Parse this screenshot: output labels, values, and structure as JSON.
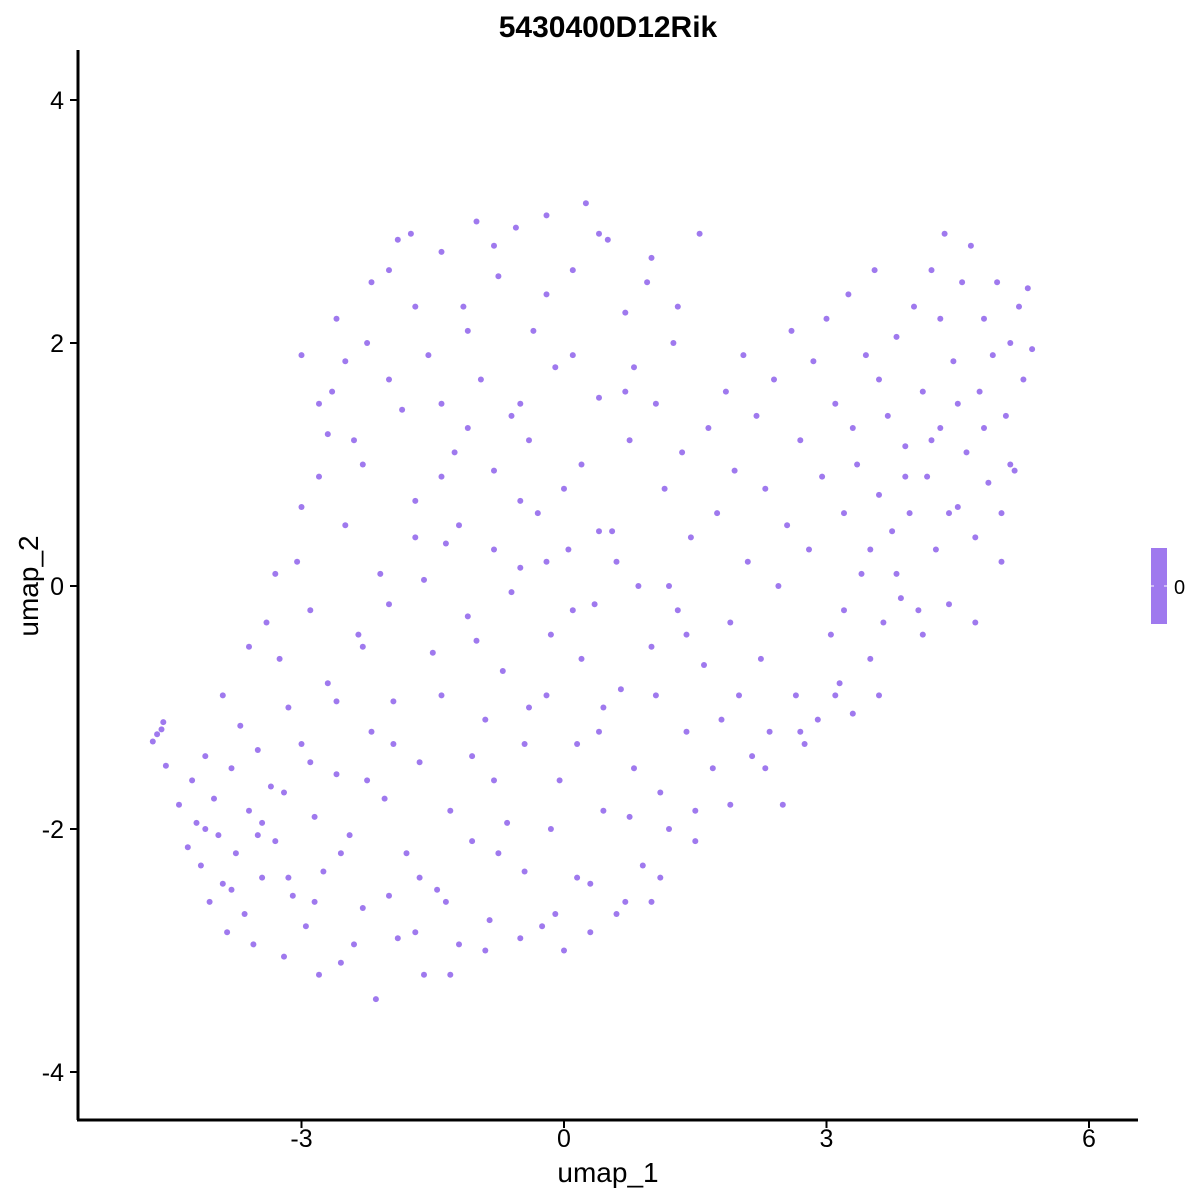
{
  "chart_data": {
    "type": "scatter",
    "title": "5430400D12Rik",
    "xlabel": "umap_1",
    "ylabel": "umap_2",
    "xlim": [
      -5.6,
      6.5
    ],
    "ylim": [
      -4.35,
      4.4
    ],
    "x_ticks": [
      -3,
      0,
      3,
      6
    ],
    "y_ticks": [
      -4,
      -2,
      0,
      2,
      4
    ],
    "x_tick_labels": [
      "-3",
      "0",
      "3",
      "6"
    ],
    "y_tick_labels": [
      "-4",
      "-2",
      "0",
      "2",
      "4"
    ],
    "grid": false,
    "point_color": "#9F79EE",
    "legend": {
      "position": "right",
      "type": "colorbar",
      "color": "#9F79EE",
      "labels": [
        "0"
      ]
    },
    "points": [
      [
        -4.7,
        -1.28
      ],
      [
        -4.65,
        -1.22
      ],
      [
        -4.6,
        -1.18
      ],
      [
        -4.58,
        -1.12
      ],
      [
        -4.55,
        -1.48
      ],
      [
        -4.4,
        -1.8
      ],
      [
        -4.3,
        -2.15
      ],
      [
        -4.25,
        -1.6
      ],
      [
        -4.2,
        -1.95
      ],
      [
        -4.15,
        -2.3
      ],
      [
        -4.1,
        -1.4
      ],
      [
        -4.05,
        -2.6
      ],
      [
        -4.0,
        -1.75
      ],
      [
        -3.95,
        -2.05
      ],
      [
        -3.9,
        -2.45
      ],
      [
        -3.85,
        -2.85
      ],
      [
        -3.8,
        -1.5
      ],
      [
        -3.75,
        -2.2
      ],
      [
        -3.7,
        -1.15
      ],
      [
        -3.65,
        -2.7
      ],
      [
        -3.6,
        -1.85
      ],
      [
        -3.55,
        -2.95
      ],
      [
        -3.5,
        -1.35
      ],
      [
        -3.45,
        -2.4
      ],
      [
        -3.4,
        -0.3
      ],
      [
        -3.35,
        -1.65
      ],
      [
        -3.3,
        -2.1
      ],
      [
        -3.25,
        -0.6
      ],
      [
        -3.2,
        -3.05
      ],
      [
        -3.15,
        -1.0
      ],
      [
        -3.1,
        -2.55
      ],
      [
        -3.05,
        0.2
      ],
      [
        -3.0,
        -1.3
      ],
      [
        -2.95,
        -2.8
      ],
      [
        -2.9,
        -0.2
      ],
      [
        -2.85,
        -1.9
      ],
      [
        -2.8,
        0.9
      ],
      [
        -2.75,
        -2.35
      ],
      [
        -2.7,
        -0.8
      ],
      [
        -2.65,
        1.6
      ],
      [
        -2.6,
        -1.55
      ],
      [
        -2.55,
        -3.1
      ],
      [
        -2.5,
        0.5
      ],
      [
        -2.45,
        -2.05
      ],
      [
        -2.4,
        1.2
      ],
      [
        -2.35,
        -0.4
      ],
      [
        -2.3,
        -2.65
      ],
      [
        -2.25,
        2.0
      ],
      [
        -2.2,
        -1.2
      ],
      [
        -2.15,
        -3.4
      ],
      [
        -2.1,
        0.1
      ],
      [
        -2.05,
        -1.75
      ],
      [
        -2.0,
        2.6
      ],
      [
        -1.95,
        -0.95
      ],
      [
        -1.9,
        -2.9
      ],
      [
        -1.85,
        1.45
      ],
      [
        -1.8,
        -2.2
      ],
      [
        -1.75,
        2.9
      ],
      [
        -1.7,
        0.7
      ],
      [
        -1.65,
        -1.45
      ],
      [
        -1.6,
        -3.2
      ],
      [
        -1.55,
        1.9
      ],
      [
        -1.5,
        -0.55
      ],
      [
        -1.45,
        -2.5
      ],
      [
        -1.4,
        2.75
      ],
      [
        -1.35,
        0.35
      ],
      [
        -1.3,
        -1.85
      ],
      [
        -1.25,
        1.1
      ],
      [
        -1.2,
        -2.95
      ],
      [
        -1.15,
        2.3
      ],
      [
        -1.1,
        -0.25
      ],
      [
        -1.05,
        -2.1
      ],
      [
        -1.0,
        3.0
      ],
      [
        -0.95,
        1.7
      ],
      [
        -0.9,
        -1.1
      ],
      [
        -0.85,
        -2.75
      ],
      [
        -0.8,
        0.95
      ],
      [
        -0.75,
        2.55
      ],
      [
        -0.7,
        -0.7
      ],
      [
        -0.65,
        -1.95
      ],
      [
        -0.6,
        1.4
      ],
      [
        -0.55,
        2.95
      ],
      [
        -0.5,
        0.15
      ],
      [
        -0.45,
        -2.35
      ],
      [
        -0.4,
        -1.0
      ],
      [
        -0.35,
        2.1
      ],
      [
        -0.3,
        0.6
      ],
      [
        -0.25,
        -2.8
      ],
      [
        -0.2,
        3.05
      ],
      [
        -0.15,
        -0.4
      ],
      [
        -0.1,
        1.8
      ],
      [
        -0.05,
        -1.6
      ],
      [
        0.0,
        -3.0
      ],
      [
        0.05,
        0.3
      ],
      [
        0.1,
        2.6
      ],
      [
        0.15,
        -1.3
      ],
      [
        0.2,
        1.0
      ],
      [
        0.25,
        3.15
      ],
      [
        0.3,
        -2.45
      ],
      [
        0.35,
        -0.15
      ],
      [
        0.4,
        1.55
      ],
      [
        0.45,
        -1.85
      ],
      [
        0.5,
        2.85
      ],
      [
        0.55,
        0.45
      ],
      [
        0.6,
        -2.7
      ],
      [
        0.65,
        -0.85
      ],
      [
        0.7,
        2.25
      ],
      [
        0.75,
        1.2
      ],
      [
        0.8,
        -1.5
      ],
      [
        0.85,
        0.0
      ],
      [
        0.9,
        -2.3
      ],
      [
        0.95,
        2.5
      ],
      [
        1.0,
        -0.5
      ],
      [
        1.05,
        1.5
      ],
      [
        1.1,
        -1.7
      ],
      [
        1.15,
        0.8
      ],
      [
        1.2,
        -2.0
      ],
      [
        1.25,
        2.0
      ],
      [
        1.3,
        -0.2
      ],
      [
        1.35,
        1.1
      ],
      [
        1.4,
        -1.2
      ],
      [
        1.45,
        0.4
      ],
      [
        1.5,
        -1.85
      ],
      [
        1.55,
        2.9
      ],
      [
        1.6,
        -0.65
      ],
      [
        1.65,
        1.3
      ],
      [
        1.7,
        -1.5
      ],
      [
        1.75,
        0.6
      ],
      [
        1.8,
        -1.1
      ],
      [
        1.85,
        1.6
      ],
      [
        1.9,
        -0.3
      ],
      [
        1.95,
        0.95
      ],
      [
        2.0,
        -0.9
      ],
      [
        2.05,
        1.9
      ],
      [
        2.1,
        0.2
      ],
      [
        2.15,
        -1.4
      ],
      [
        2.2,
        1.4
      ],
      [
        2.25,
        -0.6
      ],
      [
        2.3,
        0.8
      ],
      [
        2.35,
        -1.2
      ],
      [
        2.4,
        1.7
      ],
      [
        2.45,
        0.0
      ],
      [
        2.5,
        -1.8
      ],
      [
        2.55,
        0.5
      ],
      [
        2.6,
        2.1
      ],
      [
        2.65,
        -0.9
      ],
      [
        2.7,
        1.2
      ],
      [
        2.75,
        -1.3
      ],
      [
        2.8,
        0.3
      ],
      [
        2.85,
        1.85
      ],
      [
        2.9,
        -1.1
      ],
      [
        2.95,
        0.9
      ],
      [
        3.0,
        2.2
      ],
      [
        3.05,
        -0.4
      ],
      [
        3.1,
        1.5
      ],
      [
        3.15,
        -0.8
      ],
      [
        3.2,
        0.6
      ],
      [
        3.25,
        2.4
      ],
      [
        3.3,
        -1.05
      ],
      [
        3.35,
        1.0
      ],
      [
        3.4,
        0.1
      ],
      [
        3.45,
        1.9
      ],
      [
        3.5,
        -0.6
      ],
      [
        3.55,
        2.6
      ],
      [
        3.6,
        0.75
      ],
      [
        3.65,
        -0.3
      ],
      [
        3.7,
        1.4
      ],
      [
        3.75,
        0.45
      ],
      [
        3.8,
        2.05
      ],
      [
        3.85,
        -0.1
      ],
      [
        3.9,
        1.15
      ],
      [
        3.95,
        0.6
      ],
      [
        4.0,
        2.3
      ],
      [
        4.05,
        -0.2
      ],
      [
        4.1,
        1.6
      ],
      [
        4.15,
        0.9
      ],
      [
        4.2,
        2.6
      ],
      [
        4.25,
        0.3
      ],
      [
        4.3,
        1.3
      ],
      [
        4.35,
        2.9
      ],
      [
        4.4,
        -0.15
      ],
      [
        4.45,
        1.85
      ],
      [
        4.5,
        0.65
      ],
      [
        4.55,
        2.5
      ],
      [
        4.6,
        1.1
      ],
      [
        4.65,
        2.8
      ],
      [
        4.7,
        0.4
      ],
      [
        4.75,
        1.6
      ],
      [
        4.8,
        2.2
      ],
      [
        4.85,
        0.85
      ],
      [
        4.9,
        1.9
      ],
      [
        4.95,
        2.5
      ],
      [
        5.0,
        0.6
      ],
      [
        5.05,
        1.4
      ],
      [
        5.1,
        2.0
      ],
      [
        5.15,
        0.95
      ],
      [
        5.2,
        2.3
      ],
      [
        5.25,
        1.7
      ],
      [
        5.3,
        2.45
      ],
      [
        5.35,
        1.95
      ],
      [
        -3.9,
        -0.9
      ],
      [
        -3.6,
        -0.5
      ],
      [
        -3.3,
        0.1
      ],
      [
        -3.0,
        0.65
      ],
      [
        -2.7,
        1.25
      ],
      [
        -2.5,
        1.85
      ],
      [
        -2.2,
        2.5
      ],
      [
        -1.9,
        2.85
      ],
      [
        -1.6,
        0.05
      ],
      [
        -1.4,
        -0.9
      ],
      [
        -1.2,
        0.5
      ],
      [
        -1.0,
        -0.45
      ],
      [
        -0.8,
        -1.6
      ],
      [
        -0.6,
        -0.05
      ],
      [
        -0.4,
        1.2
      ],
      [
        -0.2,
        -0.9
      ],
      [
        0.0,
        0.8
      ],
      [
        0.2,
        -0.6
      ],
      [
        0.4,
        -1.2
      ],
      [
        0.6,
        0.2
      ],
      [
        0.8,
        1.8
      ],
      [
        1.0,
        -2.6
      ],
      [
        1.2,
        0.0
      ],
      [
        1.4,
        -0.4
      ],
      [
        -3.45,
        -1.95
      ],
      [
        -3.15,
        -2.4
      ],
      [
        -2.85,
        -2.6
      ],
      [
        -2.55,
        -2.2
      ],
      [
        -2.25,
        -1.6
      ],
      [
        -1.95,
        -1.3
      ],
      [
        -1.65,
        -2.4
      ],
      [
        -1.35,
        -2.6
      ],
      [
        -1.05,
        -1.4
      ],
      [
        -0.75,
        -2.2
      ],
      [
        -0.45,
        -1.3
      ],
      [
        -0.15,
        -2.0
      ],
      [
        0.15,
        -2.4
      ],
      [
        0.45,
        -1.0
      ],
      [
        0.75,
        -1.9
      ],
      [
        1.05,
        -0.9
      ],
      [
        -2.8,
        -3.2
      ],
      [
        -2.4,
        -2.95
      ],
      [
        -2.0,
        -2.55
      ],
      [
        -1.7,
        -2.85
      ],
      [
        -1.3,
        -3.2
      ],
      [
        -0.9,
        -3.0
      ],
      [
        -0.5,
        -2.9
      ],
      [
        -0.1,
        -2.7
      ],
      [
        0.3,
        -2.85
      ],
      [
        0.7,
        -2.6
      ],
      [
        1.1,
        -2.4
      ],
      [
        1.5,
        -2.1
      ],
      [
        1.9,
        -1.8
      ],
      [
        2.3,
        -1.5
      ],
      [
        2.7,
        -1.2
      ],
      [
        3.1,
        -0.9
      ],
      [
        -3.0,
        1.9
      ],
      [
        -2.8,
        1.5
      ],
      [
        -2.6,
        2.2
      ],
      [
        -2.3,
        1.0
      ],
      [
        -2.0,
        1.7
      ],
      [
        -1.7,
        2.3
      ],
      [
        -1.4,
        1.5
      ],
      [
        -1.1,
        2.1
      ],
      [
        -0.8,
        2.8
      ],
      [
        -0.5,
        1.5
      ],
      [
        -0.2,
        2.4
      ],
      [
        0.1,
        1.9
      ],
      [
        0.4,
        2.9
      ],
      [
        0.7,
        1.6
      ],
      [
        1.0,
        2.7
      ],
      [
        1.3,
        2.3
      ],
      [
        3.2,
        -0.2
      ],
      [
        3.5,
        0.3
      ],
      [
        3.8,
        0.1
      ],
      [
        4.1,
        -0.4
      ],
      [
        4.4,
        0.6
      ],
      [
        4.7,
        -0.3
      ],
      [
        5.0,
        0.2
      ],
      [
        3.6,
        -0.9
      ],
      [
        3.3,
        1.3
      ],
      [
        3.6,
        1.7
      ],
      [
        3.9,
        0.9
      ],
      [
        4.2,
        1.2
      ],
      [
        4.5,
        1.5
      ],
      [
        4.8,
        1.3
      ],
      [
        5.1,
        1.0
      ],
      [
        4.3,
        2.2
      ],
      [
        -4.1,
        -2.0
      ],
      [
        -3.8,
        -2.5
      ],
      [
        -3.5,
        -2.05
      ],
      [
        -3.2,
        -1.7
      ],
      [
        -2.9,
        -1.45
      ],
      [
        -2.6,
        -0.95
      ],
      [
        -2.3,
        -0.5
      ],
      [
        -2.0,
        -0.15
      ],
      [
        -1.7,
        0.4
      ],
      [
        -1.4,
        0.9
      ],
      [
        -1.1,
        1.3
      ],
      [
        -0.8,
        0.3
      ],
      [
        -0.5,
        0.7
      ],
      [
        -0.2,
        0.2
      ],
      [
        0.1,
        -0.2
      ],
      [
        0.4,
        0.45
      ]
    ]
  }
}
